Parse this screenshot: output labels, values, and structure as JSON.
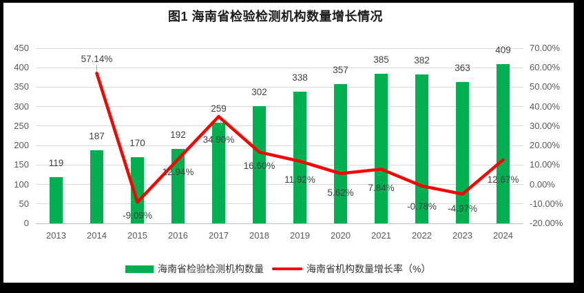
{
  "title": "图1 海南省检验检测机构数量增长情况",
  "chart_data": {
    "type": "bar",
    "subtype": "combo-bar-line-dual-axis",
    "categories": [
      "2013",
      "2014",
      "2015",
      "2016",
      "2017",
      "2018",
      "2019",
      "2020",
      "2021",
      "2022",
      "2023",
      "2024"
    ],
    "series": [
      {
        "name": "海南省检验检测机构数量",
        "type": "bar",
        "axis": "left",
        "color": "#00B050",
        "values": [
          119,
          187,
          170,
          192,
          259,
          302,
          338,
          357,
          385,
          382,
          363,
          409
        ],
        "labels": [
          "119",
          "187",
          "170",
          "192",
          "259",
          "302",
          "338",
          "357",
          "385",
          "382",
          "363",
          "409"
        ]
      },
      {
        "name": "海南省机构数量增长率（%）",
        "type": "line",
        "axis": "right",
        "color": "#FF0000",
        "values": [
          null,
          57.14,
          -9.09,
          12.94,
          34.9,
          16.6,
          11.92,
          5.62,
          7.84,
          -0.78,
          -4.97,
          12.67
        ],
        "labels": [
          null,
          "57.14%",
          "-9.09%",
          "12.94%",
          "34.90%",
          "16.60%",
          "11.92%",
          "5.62%",
          "7.84%",
          "-0.78%",
          "-4.97%",
          "12.67%"
        ]
      }
    ],
    "left_axis": {
      "min": 0,
      "max": 450,
      "step": 50,
      "ticks_top_to_bottom": [
        "450",
        "400",
        "350",
        "300",
        "250",
        "200",
        "150",
        "100",
        "50",
        "0"
      ]
    },
    "right_axis": {
      "min": -20,
      "max": 70,
      "step": 10,
      "ticks_top_to_bottom": [
        "70.00%",
        "60.00%",
        "50.00%",
        "40.00%",
        "30.00%",
        "20.00%",
        "10.00%",
        "0.00%",
        "-10.00%",
        "-20.00%"
      ]
    },
    "grid": true,
    "legend_position": "bottom",
    "legend": [
      {
        "label": "海南省检验检测机构数量",
        "marker": "bar-swatch",
        "color": "#00B050"
      },
      {
        "label": "海南省机构数量增长率（%）",
        "marker": "line-swatch",
        "color": "#FF0000"
      }
    ]
  },
  "colors": {
    "bar_green": "#00B050",
    "line_red": "#FF0000",
    "gridline": "#d9d9d9",
    "axis_text": "#595959",
    "data_label": "#404040",
    "page_border": "#000000",
    "chart_background": "#ffffff"
  }
}
